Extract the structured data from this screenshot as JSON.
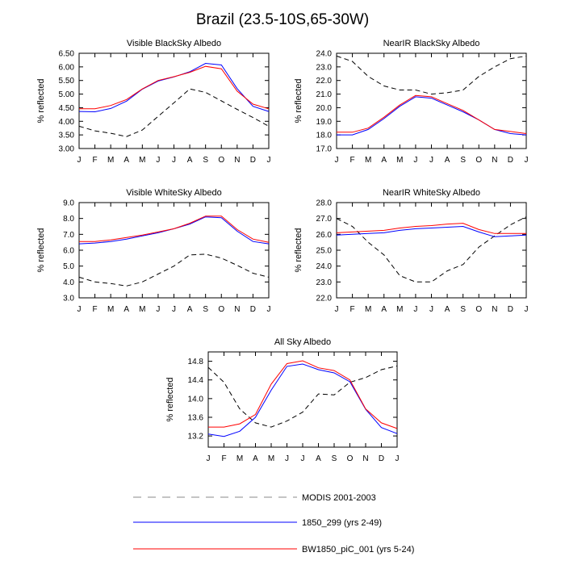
{
  "title": "Brazil (23.5-10S,65-30W)",
  "colors": {
    "modis": "#000000",
    "s1850": "#0000ff",
    "bw1850": "#ff0000",
    "axis": "#000000"
  },
  "legend": [
    {
      "label": "MODIS 2001-2003",
      "series": "modis",
      "style": "dashed",
      "color": "#000000"
    },
    {
      "label": "1850_299 (yrs 2-49)",
      "series": "s1850",
      "style": "solid",
      "color": "#0000ff"
    },
    {
      "label": "BW1850_piC_001 (yrs 5-24)",
      "series": "bw1850",
      "style": "solid",
      "color": "#ff0000"
    }
  ],
  "chart_data": [
    {
      "type": "line",
      "title": "Visible BlackSky Albedo",
      "ylabel": "% reflected",
      "categories": [
        "J",
        "F",
        "M",
        "A",
        "M",
        "J",
        "J",
        "A",
        "S",
        "O",
        "N",
        "D",
        "J"
      ],
      "ylim": [
        3.0,
        6.5
      ],
      "yticks": [
        3.0,
        3.5,
        4.0,
        4.5,
        5.0,
        5.5,
        6.0,
        6.5
      ],
      "ytick_labels": [
        "3.00",
        "3.50",
        "4.00",
        "4.50",
        "5.00",
        "5.50",
        "6.00",
        "6.50"
      ],
      "series": [
        {
          "name": "MODIS 2001-2003",
          "values": [
            3.82,
            3.65,
            3.56,
            3.44,
            3.68,
            4.18,
            4.68,
            5.19,
            5.06,
            4.75,
            4.44,
            4.14,
            3.82
          ]
        },
        {
          "name": "1850_299 (yrs 2-49)",
          "values": [
            4.36,
            4.35,
            4.47,
            4.74,
            5.18,
            5.48,
            5.63,
            5.82,
            6.13,
            6.07,
            5.2,
            4.55,
            4.36
          ]
        },
        {
          "name": "BW1850_piC_001 (yrs 5-24)",
          "values": [
            4.46,
            4.46,
            4.58,
            4.8,
            5.19,
            5.5,
            5.64,
            5.8,
            6.02,
            5.93,
            5.11,
            4.63,
            4.46
          ]
        }
      ]
    },
    {
      "type": "line",
      "title": "NearIR BlackSky Albedo",
      "ylabel": "% reflected",
      "categories": [
        "J",
        "F",
        "M",
        "A",
        "M",
        "J",
        "J",
        "A",
        "S",
        "O",
        "N",
        "D",
        "J"
      ],
      "ylim": [
        17.0,
        24.0
      ],
      "yticks": [
        17,
        18,
        19,
        20,
        21,
        22,
        23,
        24
      ],
      "ytick_labels": [
        "17.0",
        "18.0",
        "19.0",
        "20.0",
        "21.0",
        "22.0",
        "23.0",
        "24.0"
      ],
      "series": [
        {
          "name": "MODIS 2001-2003",
          "values": [
            23.8,
            23.4,
            22.3,
            21.6,
            21.3,
            21.3,
            21.0,
            21.1,
            21.3,
            22.3,
            23.0,
            23.6,
            23.8
          ]
        },
        {
          "name": "1850_299 (yrs 2-49)",
          "values": [
            18.0,
            18.0,
            18.4,
            19.2,
            20.1,
            20.8,
            20.7,
            20.2,
            19.7,
            19.1,
            18.4,
            18.1,
            18.0
          ]
        },
        {
          "name": "BW1850_piC_001 (yrs 5-24)",
          "values": [
            18.2,
            18.2,
            18.5,
            19.3,
            20.2,
            20.9,
            20.8,
            20.3,
            19.8,
            19.1,
            18.4,
            18.25,
            18.1
          ]
        }
      ]
    },
    {
      "type": "line",
      "title": "Visible WhiteSky Albedo",
      "ylabel": "% reflected",
      "categories": [
        "J",
        "F",
        "M",
        "A",
        "M",
        "J",
        "J",
        "A",
        "S",
        "O",
        "N",
        "D",
        "J"
      ],
      "ylim": [
        3.0,
        9.0
      ],
      "yticks": [
        3,
        4,
        5,
        6,
        7,
        8,
        9
      ],
      "ytick_labels": [
        "3.0",
        "4.0",
        "5.0",
        "6.0",
        "7.0",
        "8.0",
        "9.0"
      ],
      "series": [
        {
          "name": "MODIS 2001-2003",
          "values": [
            4.3,
            4.0,
            3.9,
            3.75,
            4.0,
            4.5,
            5.0,
            5.7,
            5.75,
            5.5,
            5.05,
            4.55,
            4.3
          ]
        },
        {
          "name": "1850_299 (yrs 2-49)",
          "values": [
            6.4,
            6.45,
            6.55,
            6.7,
            6.9,
            7.1,
            7.35,
            7.65,
            8.1,
            8.05,
            7.2,
            6.55,
            6.4
          ]
        },
        {
          "name": "BW1850_piC_001 (yrs 5-24)",
          "values": [
            6.55,
            6.55,
            6.65,
            6.8,
            6.95,
            7.15,
            7.35,
            7.7,
            8.15,
            8.15,
            7.3,
            6.7,
            6.5
          ]
        }
      ]
    },
    {
      "type": "line",
      "title": "NearIR WhiteSky Albedo",
      "ylabel": "% reflected",
      "categories": [
        "J",
        "F",
        "M",
        "A",
        "M",
        "J",
        "J",
        "A",
        "S",
        "O",
        "N",
        "D",
        "J"
      ],
      "ylim": [
        22.0,
        28.0
      ],
      "yticks": [
        22,
        23,
        24,
        25,
        26,
        27,
        28
      ],
      "ytick_labels": [
        "22.0",
        "23.0",
        "24.0",
        "25.0",
        "26.0",
        "27.0",
        "28.0"
      ],
      "series": [
        {
          "name": "MODIS 2001-2003",
          "values": [
            27.0,
            26.5,
            25.5,
            24.7,
            23.4,
            23.0,
            23.0,
            23.7,
            24.1,
            25.2,
            25.9,
            26.6,
            27.1
          ]
        },
        {
          "name": "1850_299 (yrs 2-49)",
          "values": [
            25.95,
            26.0,
            26.05,
            26.1,
            26.25,
            26.35,
            26.4,
            26.45,
            26.5,
            26.15,
            25.85,
            25.9,
            25.95
          ]
        },
        {
          "name": "BW1850_piC_001 (yrs 5-24)",
          "values": [
            26.1,
            26.15,
            26.2,
            26.25,
            26.4,
            26.5,
            26.55,
            26.65,
            26.7,
            26.3,
            26.05,
            26.05,
            26.05
          ]
        }
      ]
    },
    {
      "type": "line",
      "title": "All Sky Albedo",
      "ylabel": "% reflected",
      "categories": [
        "J",
        "F",
        "M",
        "A",
        "M",
        "J",
        "J",
        "A",
        "S",
        "O",
        "N",
        "D",
        "J"
      ],
      "ylim": [
        12.96,
        15.0
      ],
      "yticks": [
        13.2,
        13.6,
        14.0,
        14.4,
        14.8
      ],
      "ytick_labels": [
        "13.2",
        "13.6",
        "14.0",
        "14.4",
        "14.8"
      ],
      "series": [
        {
          "name": "MODIS 2001-2003",
          "values": [
            14.67,
            14.35,
            13.78,
            13.48,
            13.39,
            13.52,
            13.71,
            14.1,
            14.08,
            14.35,
            14.45,
            14.62,
            14.7
          ]
        },
        {
          "name": "1850_299 (yrs 2-49)",
          "values": [
            13.24,
            13.19,
            13.3,
            13.6,
            14.18,
            14.69,
            14.74,
            14.62,
            14.55,
            14.36,
            13.77,
            13.38,
            13.25
          ]
        },
        {
          "name": "BW1850_piC_001 (yrs 5-24)",
          "values": [
            13.39,
            13.39,
            13.46,
            13.66,
            14.31,
            14.75,
            14.81,
            14.66,
            14.6,
            14.4,
            13.78,
            13.48,
            13.36
          ]
        }
      ]
    }
  ]
}
